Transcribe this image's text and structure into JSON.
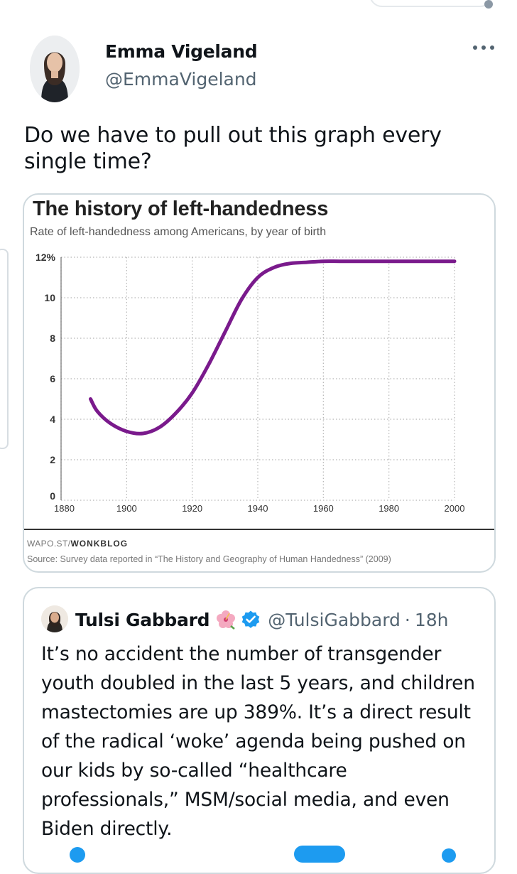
{
  "tweet": {
    "author_name": "Emma Vigeland",
    "author_handle": "@EmmaVigeland",
    "text": "Do we have to pull out this graph every single time?",
    "more_icon": "ellipsis-icon"
  },
  "media": {
    "credit_prefix": "WAPO.ST/",
    "credit_bold": "WONKBLOG",
    "source": "Source: Survey data reported in “The History and Geography of Human Handedness” (2009)"
  },
  "chart_data": {
    "type": "line",
    "title": "The history of left-handedness",
    "subtitle": "Rate of left-handedness among Americans, by year of birth",
    "xlabel": "",
    "ylabel": "",
    "xlim": [
      1880,
      2000
    ],
    "ylim": [
      0,
      12
    ],
    "x_ticks": [
      "1880",
      "1900",
      "1920",
      "1940",
      "1960",
      "1980",
      "2000"
    ],
    "y_ticks": [
      "0",
      "2",
      "4",
      "6",
      "8",
      "10",
      "12%"
    ],
    "grid": true,
    "line_color": "#7a1a8c",
    "series": [
      {
        "x": [
          1889,
          1891,
          1895,
          1900,
          1905,
          1910,
          1915,
          1920,
          1925,
          1930,
          1935,
          1940,
          1945,
          1950,
          1955,
          1960,
          1965,
          1970,
          1980,
          1990,
          2000
        ],
        "values": [
          5.0,
          4.4,
          3.8,
          3.4,
          3.3,
          3.6,
          4.3,
          5.3,
          6.7,
          8.3,
          9.9,
          11.0,
          11.5,
          11.7,
          11.75,
          11.8,
          11.8,
          11.8,
          11.8,
          11.8,
          11.8
        ]
      }
    ]
  },
  "quote": {
    "author_name": "Tulsi Gabbard",
    "emoji": "hibiscus-icon",
    "verified": "verified-badge-icon",
    "handle": "@TulsiGabbard",
    "separator": "·",
    "time": "18h",
    "text": "It’s no accident the number of transgender youth doubled in the last 5 years, and children mastectomies are up 389%. It’s a direct result of the radical ‘woke’ agenda being pushed on our kids by so-called “healthcare professionals,” MSM/social media, and even Biden directly."
  },
  "colors": {
    "accent": "#1d9bf0",
    "secondary_text": "#536471",
    "border": "#cfd9de"
  }
}
